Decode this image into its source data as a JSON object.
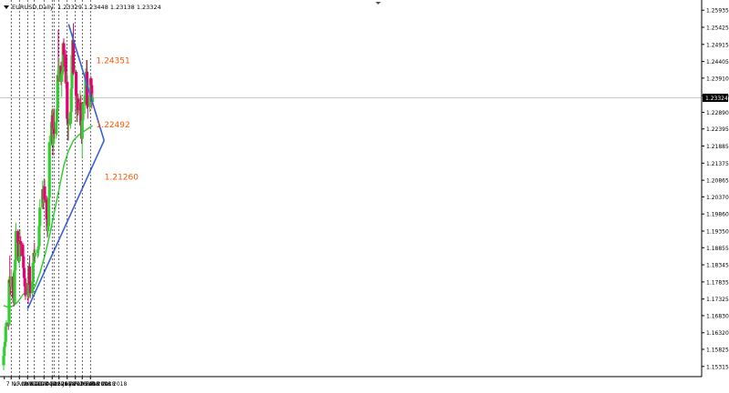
{
  "header": {
    "symbol": "EURUSD,Daily",
    "ohlc": "1.23329 1.23448 1.23138 1.23324"
  },
  "chart_data": {
    "type": "candlestick",
    "x_tick_labels": [
      "7 Nov 2017",
      "17 Nov 2017",
      "29 Nov 2017",
      "11 Dec 2017",
      "21 Dec 2017",
      "4 Jan 2018",
      "16 Jan 2018",
      "26 Jan 2018",
      "7 Feb 2018",
      "19 Feb 2018",
      "1 Mar 2018",
      "13 Mar 2018"
    ],
    "y_tick_labels": [
      "1.25935",
      "1.25425",
      "1.24915",
      "1.24405",
      "1.23910",
      "1.23390",
      "1.22890",
      "1.22395",
      "1.21885",
      "1.21375",
      "1.20865",
      "1.20370",
      "1.19860",
      "1.19350",
      "1.18855",
      "1.18345",
      "1.17835",
      "1.17325",
      "1.16830",
      "1.16320",
      "1.15825",
      "1.15315"
    ],
    "ylim": [
      1.1512,
      1.2613
    ],
    "current_price": "1.23324",
    "current_price_value": 1.23324,
    "annotations": [
      {
        "text": "1.24351",
        "value": 1.24351
      },
      {
        "text": "1.22492",
        "value": 1.22492
      },
      {
        "text": "1.21260",
        "value": 1.2126
      }
    ],
    "trendlines": [
      {
        "from": [
          "11 Dec 2017",
          1.1703
        ],
        "to": [
          "2 Apr 2018",
          1.2205
        ]
      },
      {
        "from": [
          "9 Feb 2018",
          1.2552
        ],
        "to": [
          "2 Apr 2018",
          1.2205
        ]
      }
    ],
    "candles": [
      {
        "d": "2017-11-06",
        "o": 1.1535,
        "h": 1.1572,
        "l": 1.152,
        "c": 1.1563
      },
      {
        "d": "2017-11-07",
        "o": 1.1563,
        "h": 1.1598,
        "l": 1.1552,
        "c": 1.159
      },
      {
        "d": "2017-11-08",
        "o": 1.159,
        "h": 1.162,
        "l": 1.1578,
        "c": 1.1605
      },
      {
        "d": "2017-11-09",
        "o": 1.1605,
        "h": 1.166,
        "l": 1.1596,
        "c": 1.165
      },
      {
        "d": "2017-11-10",
        "o": 1.165,
        "h": 1.167,
        "l": 1.163,
        "c": 1.1662
      },
      {
        "d": "2017-11-13",
        "o": 1.1662,
        "h": 1.1675,
        "l": 1.164,
        "c": 1.1655
      },
      {
        "d": "2017-11-14",
        "o": 1.1655,
        "h": 1.18,
        "l": 1.165,
        "c": 1.179
      },
      {
        "d": "2017-11-15",
        "o": 1.179,
        "h": 1.1862,
        "l": 1.177,
        "c": 1.178
      },
      {
        "d": "2017-11-16",
        "o": 1.178,
        "h": 1.1795,
        "l": 1.1745,
        "c": 1.177
      },
      {
        "d": "2017-11-17",
        "o": 1.177,
        "h": 1.1822,
        "l": 1.176,
        "c": 1.18
      },
      {
        "d": "2017-11-20",
        "o": 1.18,
        "h": 1.181,
        "l": 1.172,
        "c": 1.1735
      },
      {
        "d": "2017-11-21",
        "o": 1.1735,
        "h": 1.1745,
        "l": 1.171,
        "c": 1.172
      },
      {
        "d": "2017-11-22",
        "o": 1.172,
        "h": 1.183,
        "l": 1.1715,
        "c": 1.1818
      },
      {
        "d": "2017-11-23",
        "o": 1.1818,
        "h": 1.186,
        "l": 1.181,
        "c": 1.185
      },
      {
        "d": "2017-11-24",
        "o": 1.185,
        "h": 1.196,
        "l": 1.1845,
        "c": 1.1935
      },
      {
        "d": "2017-11-27",
        "o": 1.1935,
        "h": 1.194,
        "l": 1.188,
        "c": 1.19
      },
      {
        "d": "2017-11-28",
        "o": 1.19,
        "h": 1.1905,
        "l": 1.184,
        "c": 1.1845
      },
      {
        "d": "2017-11-29",
        "o": 1.1845,
        "h": 1.188,
        "l": 1.183,
        "c": 1.186
      },
      {
        "d": "2017-11-30",
        "o": 1.186,
        "h": 1.194,
        "l": 1.185,
        "c": 1.1905
      },
      {
        "d": "2017-12-01",
        "o": 1.1905,
        "h": 1.192,
        "l": 1.186,
        "c": 1.1895
      },
      {
        "d": "2017-12-04",
        "o": 1.1895,
        "h": 1.19,
        "l": 1.1835,
        "c": 1.186
      },
      {
        "d": "2017-12-05",
        "o": 1.186,
        "h": 1.187,
        "l": 1.181,
        "c": 1.1825
      },
      {
        "d": "2017-12-06",
        "o": 1.1825,
        "h": 1.183,
        "l": 1.178,
        "c": 1.1795
      },
      {
        "d": "2017-12-07",
        "o": 1.1795,
        "h": 1.18,
        "l": 1.174,
        "c": 1.177
      },
      {
        "d": "2017-12-08",
        "o": 1.177,
        "h": 1.1785,
        "l": 1.173,
        "c": 1.1745
      },
      {
        "d": "2017-12-11",
        "o": 1.1745,
        "h": 1.179,
        "l": 1.1735,
        "c": 1.178
      },
      {
        "d": "2017-12-12",
        "o": 1.178,
        "h": 1.1795,
        "l": 1.1718,
        "c": 1.174
      },
      {
        "d": "2017-12-13",
        "o": 1.174,
        "h": 1.184,
        "l": 1.1735,
        "c": 1.183
      },
      {
        "d": "2017-12-14",
        "o": 1.183,
        "h": 1.1862,
        "l": 1.176,
        "c": 1.1775
      },
      {
        "d": "2017-12-15",
        "o": 1.1775,
        "h": 1.179,
        "l": 1.1735,
        "c": 1.175
      },
      {
        "d": "2017-12-18",
        "o": 1.175,
        "h": 1.1805,
        "l": 1.174,
        "c": 1.1785
      },
      {
        "d": "2017-12-19",
        "o": 1.1785,
        "h": 1.1855,
        "l": 1.177,
        "c": 1.184
      },
      {
        "d": "2017-12-20",
        "o": 1.184,
        "h": 1.188,
        "l": 1.183,
        "c": 1.187
      },
      {
        "d": "2017-12-21",
        "o": 1.187,
        "h": 1.19,
        "l": 1.1845,
        "c": 1.186
      },
      {
        "d": "2017-12-22",
        "o": 1.186,
        "h": 1.188,
        "l": 1.184,
        "c": 1.187
      },
      {
        "d": "2017-12-26",
        "o": 1.187,
        "h": 1.189,
        "l": 1.1855,
        "c": 1.188
      },
      {
        "d": "2017-12-27",
        "o": 1.188,
        "h": 1.19,
        "l": 1.186,
        "c": 1.189
      },
      {
        "d": "2017-12-28",
        "o": 1.189,
        "h": 1.196,
        "l": 1.1885,
        "c": 1.195
      },
      {
        "d": "2017-12-29",
        "o": 1.195,
        "h": 1.203,
        "l": 1.1945,
        "c": 1.2005
      },
      {
        "d": "2018-01-02",
        "o": 1.2005,
        "h": 1.2085,
        "l": 1.2,
        "c": 1.206
      },
      {
        "d": "2018-01-03",
        "o": 1.206,
        "h": 1.207,
        "l": 1.2,
        "c": 1.202
      },
      {
        "d": "2018-01-04",
        "o": 1.202,
        "h": 1.209,
        "l": 1.2015,
        "c": 1.2068
      },
      {
        "d": "2018-01-05",
        "o": 1.2068,
        "h": 1.209,
        "l": 1.202,
        "c": 1.203
      },
      {
        "d": "2018-01-08",
        "o": 1.203,
        "h": 1.204,
        "l": 1.196,
        "c": 1.197
      },
      {
        "d": "2018-01-09",
        "o": 1.197,
        "h": 1.198,
        "l": 1.1915,
        "c": 1.1935
      },
      {
        "d": "2018-01-10",
        "o": 1.1935,
        "h": 1.1995,
        "l": 1.192,
        "c": 1.195
      },
      {
        "d": "2018-01-11",
        "o": 1.195,
        "h": 1.206,
        "l": 1.194,
        "c": 1.2035
      },
      {
        "d": "2018-01-12",
        "o": 1.2035,
        "h": 1.222,
        "l": 1.203,
        "c": 1.22
      },
      {
        "d": "2018-01-15",
        "o": 1.22,
        "h": 1.2295,
        "l": 1.219,
        "c": 1.226
      },
      {
        "d": "2018-01-16",
        "o": 1.226,
        "h": 1.23,
        "l": 1.224,
        "c": 1.228
      },
      {
        "d": "2018-01-17",
        "o": 1.228,
        "h": 1.23,
        "l": 1.216,
        "c": 1.2195
      },
      {
        "d": "2018-01-18",
        "o": 1.2195,
        "h": 1.229,
        "l": 1.218,
        "c": 1.224
      },
      {
        "d": "2018-01-19",
        "o": 1.224,
        "h": 1.23,
        "l": 1.221,
        "c": 1.2225
      },
      {
        "d": "2018-01-22",
        "o": 1.2225,
        "h": 1.227,
        "l": 1.221,
        "c": 1.226
      },
      {
        "d": "2018-01-23",
        "o": 1.226,
        "h": 1.23,
        "l": 1.222,
        "c": 1.23
      },
      {
        "d": "2018-01-24",
        "o": 1.23,
        "h": 1.2415,
        "l": 1.229,
        "c": 1.24
      },
      {
        "d": "2018-01-25",
        "o": 1.24,
        "h": 1.2535,
        "l": 1.238,
        "c": 1.2395
      },
      {
        "d": "2018-01-26",
        "o": 1.2395,
        "h": 1.245,
        "l": 1.238,
        "c": 1.2428
      },
      {
        "d": "2018-01-29",
        "o": 1.2428,
        "h": 1.244,
        "l": 1.237,
        "c": 1.238
      },
      {
        "d": "2018-01-30",
        "o": 1.238,
        "h": 1.2415,
        "l": 1.2335,
        "c": 1.2405
      },
      {
        "d": "2018-01-31",
        "o": 1.2405,
        "h": 1.245,
        "l": 1.238,
        "c": 1.241
      },
      {
        "d": "2018-02-01",
        "o": 1.241,
        "h": 1.25,
        "l": 1.24,
        "c": 1.2495
      },
      {
        "d": "2018-02-02",
        "o": 1.2495,
        "h": 1.251,
        "l": 1.2425,
        "c": 1.246
      },
      {
        "d": "2018-02-05",
        "o": 1.246,
        "h": 1.2475,
        "l": 1.236,
        "c": 1.2375
      },
      {
        "d": "2018-02-06",
        "o": 1.2375,
        "h": 1.241,
        "l": 1.2335,
        "c": 1.238
      },
      {
        "d": "2018-02-07",
        "o": 1.238,
        "h": 1.24,
        "l": 1.226,
        "c": 1.227
      },
      {
        "d": "2018-02-08",
        "o": 1.227,
        "h": 1.229,
        "l": 1.2205,
        "c": 1.225
      },
      {
        "d": "2018-02-09",
        "o": 1.225,
        "h": 1.2285,
        "l": 1.2205,
        "c": 1.2255
      },
      {
        "d": "2018-02-12",
        "o": 1.2255,
        "h": 1.2305,
        "l": 1.224,
        "c": 1.229
      },
      {
        "d": "2018-02-13",
        "o": 1.229,
        "h": 1.238,
        "l": 1.228,
        "c": 1.236
      },
      {
        "d": "2018-02-14",
        "o": 1.236,
        "h": 1.248,
        "l": 1.235,
        "c": 1.246
      },
      {
        "d": "2018-02-15",
        "o": 1.246,
        "h": 1.2525,
        "l": 1.2445,
        "c": 1.2505
      },
      {
        "d": "2018-02-16",
        "o": 1.2505,
        "h": 1.2555,
        "l": 1.24,
        "c": 1.2405
      },
      {
        "d": "2018-02-19",
        "o": 1.2405,
        "h": 1.2425,
        "l": 1.2385,
        "c": 1.241
      },
      {
        "d": "2018-02-20",
        "o": 1.241,
        "h": 1.2415,
        "l": 1.233,
        "c": 1.234
      },
      {
        "d": "2018-02-21",
        "o": 1.234,
        "h": 1.2355,
        "l": 1.226,
        "c": 1.2285
      },
      {
        "d": "2018-02-22",
        "o": 1.2285,
        "h": 1.234,
        "l": 1.226,
        "c": 1.233
      },
      {
        "d": "2018-02-23",
        "o": 1.233,
        "h": 1.2345,
        "l": 1.228,
        "c": 1.2295
      },
      {
        "d": "2018-02-26",
        "o": 1.2295,
        "h": 1.2355,
        "l": 1.228,
        "c": 1.2318
      },
      {
        "d": "2018-02-27",
        "o": 1.2318,
        "h": 1.234,
        "l": 1.224,
        "c": 1.225
      },
      {
        "d": "2018-02-28",
        "o": 1.225,
        "h": 1.2265,
        "l": 1.2195,
        "c": 1.221
      },
      {
        "d": "2018-03-01",
        "o": 1.221,
        "h": 1.227,
        "l": 1.2155,
        "c": 1.2265
      },
      {
        "d": "2018-03-02",
        "o": 1.2265,
        "h": 1.232,
        "l": 1.2245,
        "c": 1.2315
      },
      {
        "d": "2018-03-05",
        "o": 1.2315,
        "h": 1.236,
        "l": 1.2285,
        "c": 1.234
      },
      {
        "d": "2018-03-06",
        "o": 1.234,
        "h": 1.242,
        "l": 1.233,
        "c": 1.2405
      },
      {
        "d": "2018-03-07",
        "o": 1.2405,
        "h": 1.2445,
        "l": 1.239,
        "c": 1.241
      },
      {
        "d": "2018-03-08",
        "o": 1.241,
        "h": 1.2445,
        "l": 1.23,
        "c": 1.231
      },
      {
        "d": "2018-03-09",
        "o": 1.231,
        "h": 1.233,
        "l": 1.227,
        "c": 1.2305
      },
      {
        "d": "2018-03-12",
        "o": 1.2305,
        "h": 1.235,
        "l": 1.229,
        "c": 1.234
      },
      {
        "d": "2018-03-13",
        "o": 1.234,
        "h": 1.24,
        "l": 1.233,
        "c": 1.239
      },
      {
        "d": "2018-03-14",
        "o": 1.239,
        "h": 1.2395,
        "l": 1.234,
        "c": 1.237
      },
      {
        "d": "2018-03-15",
        "o": 1.237,
        "h": 1.238,
        "l": 1.23,
        "c": 1.232
      },
      {
        "d": "2018-03-16",
        "o": 1.232,
        "h": 1.2345,
        "l": 1.2314,
        "c": 1.2332
      }
    ],
    "moving_average": [
      [
        "2017-11-06",
        1.1713
      ],
      [
        "2017-11-13",
        1.1708
      ],
      [
        "2017-11-20",
        1.1712
      ],
      [
        "2017-11-27",
        1.1725
      ],
      [
        "2017-12-04",
        1.1745
      ],
      [
        "2017-12-11",
        1.1758
      ],
      [
        "2017-12-18",
        1.1762
      ],
      [
        "2017-12-22",
        1.177
      ],
      [
        "2017-12-29",
        1.181
      ],
      [
        "2018-01-05",
        1.186
      ],
      [
        "2018-01-12",
        1.192
      ],
      [
        "2018-01-19",
        1.199
      ],
      [
        "2018-01-26",
        1.206
      ],
      [
        "2018-02-02",
        1.213
      ],
      [
        "2018-02-09",
        1.2175
      ],
      [
        "2018-02-16",
        1.2205
      ],
      [
        "2018-02-23",
        1.222
      ],
      [
        "2018-03-02",
        1.223
      ],
      [
        "2018-03-09",
        1.224
      ],
      [
        "2018-03-16",
        1.2249
      ]
    ],
    "colors": {
      "bull": "#33cc33",
      "bear": "#e60073",
      "moving_average": "#33cc33",
      "trendline": "#3a5fd6",
      "annotation": "#ff5500",
      "grid": "#000000",
      "axis": "#000000",
      "price_label_bg": "#000000",
      "price_label_text": "#ffffff"
    },
    "grid": "vertical-dashed"
  }
}
